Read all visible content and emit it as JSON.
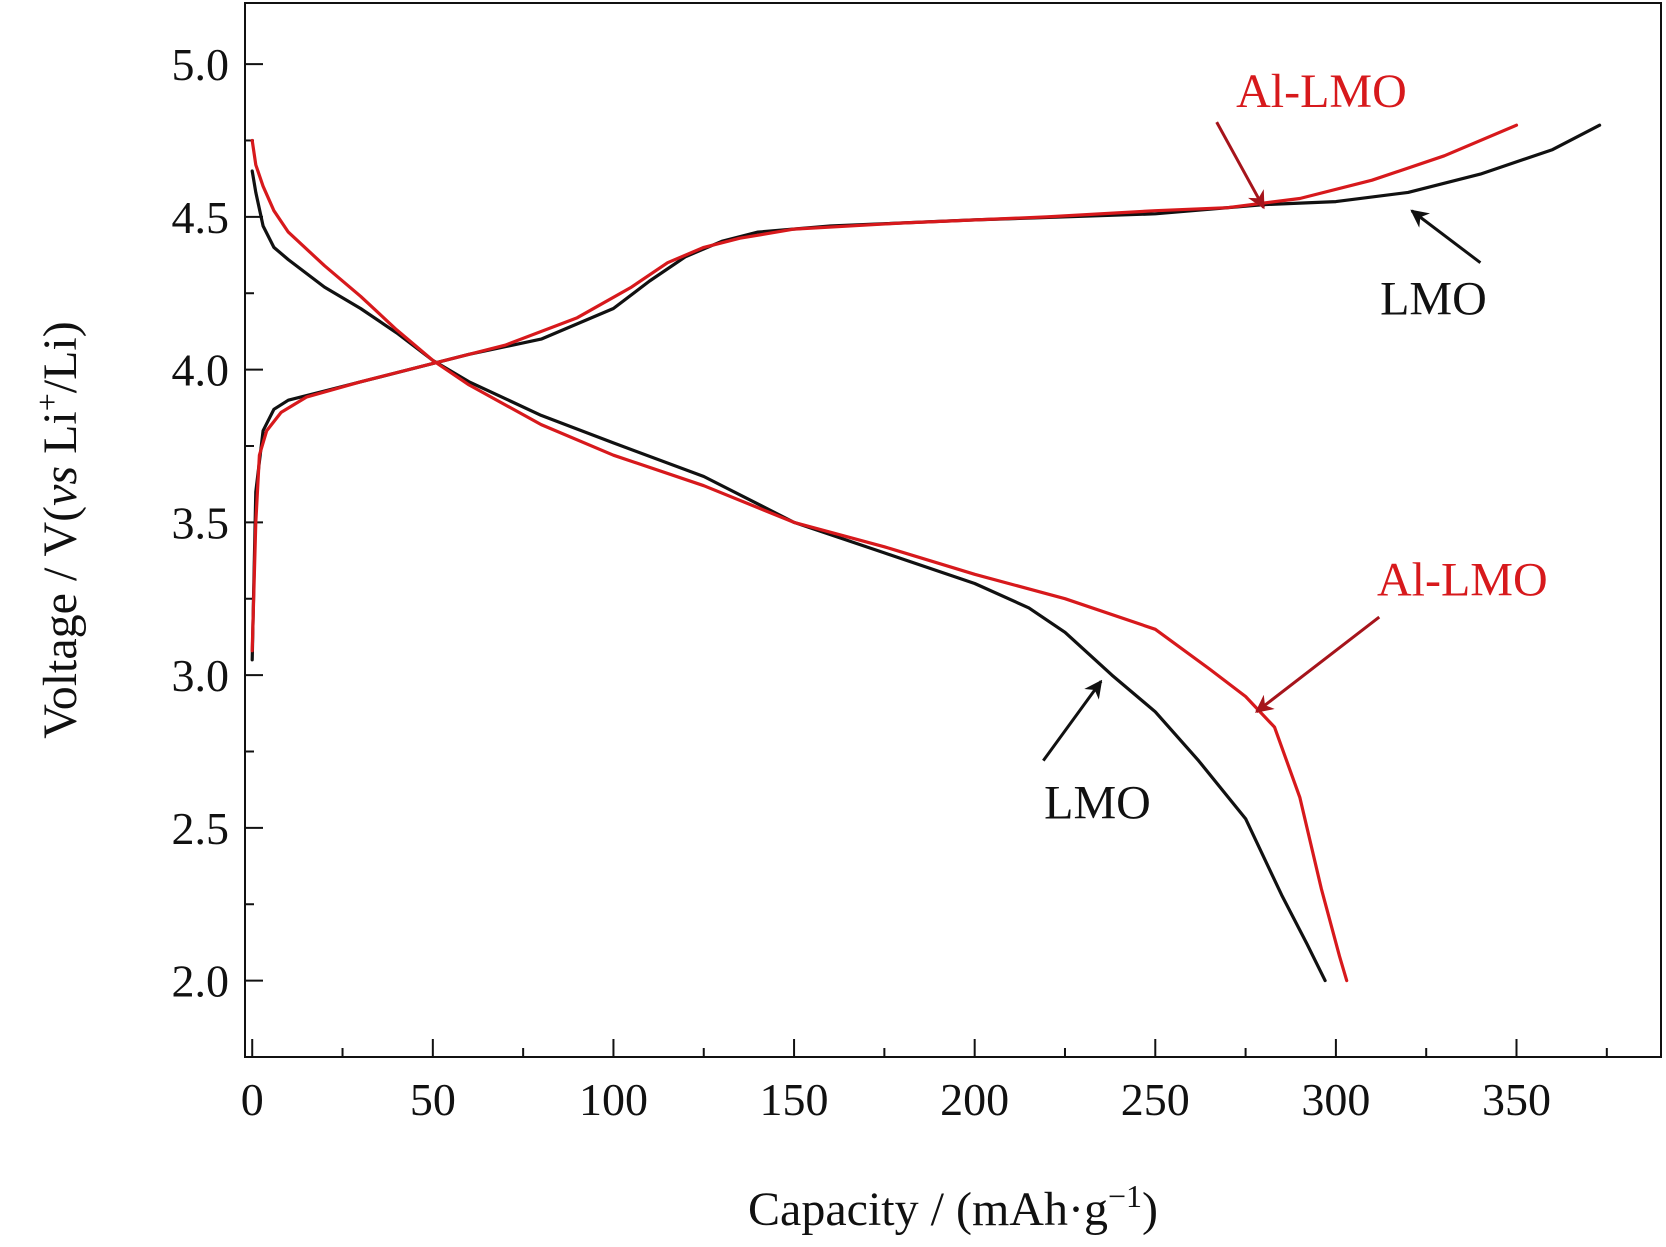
{
  "chart_data": {
    "type": "line",
    "xlabel": "Capacity / (mAh·g",
    "xlabel_sup": "−1",
    "xlabel_end": ")",
    "ylabel_prefix": "Voltage / V(",
    "ylabel_vs": "vs",
    "ylabel_li": " Li",
    "ylabel_sup": "+",
    "ylabel_end": "/Li)",
    "xlim": [
      -2,
      390
    ],
    "ylim": [
      1.75,
      5.2
    ],
    "xticks": [
      0,
      50,
      100,
      150,
      200,
      250,
      300,
      350
    ],
    "xtick_labels": [
      "0",
      "50",
      "100",
      "150",
      "200",
      "250",
      "300",
      "350"
    ],
    "yticks": [
      2.0,
      2.5,
      3.0,
      3.5,
      4.0,
      4.5,
      5.0
    ],
    "ytick_labels": [
      "2.0",
      "2.5",
      "3.0",
      "3.5",
      "4.0",
      "4.5",
      "5.0"
    ],
    "colors": {
      "LMO": "#111111",
      "Al-LMO": "#d7191c",
      "Al-LMO-arrow": "#a6141b"
    },
    "series": [
      {
        "name": "LMO",
        "segment": "charge",
        "color": "#111111",
        "points": [
          [
            0,
            3.05
          ],
          [
            1,
            3.6
          ],
          [
            3,
            3.8
          ],
          [
            6,
            3.87
          ],
          [
            10,
            3.9
          ],
          [
            20,
            3.93
          ],
          [
            40,
            3.99
          ],
          [
            60,
            4.05
          ],
          [
            80,
            4.1
          ],
          [
            100,
            4.2
          ],
          [
            110,
            4.29
          ],
          [
            120,
            4.37
          ],
          [
            130,
            4.42
          ],
          [
            140,
            4.45
          ],
          [
            160,
            4.47
          ],
          [
            200,
            4.49
          ],
          [
            250,
            4.51
          ],
          [
            280,
            4.54
          ],
          [
            300,
            4.55
          ],
          [
            320,
            4.58
          ],
          [
            340,
            4.64
          ],
          [
            360,
            4.72
          ],
          [
            373,
            4.8
          ]
        ]
      },
      {
        "name": "LMO",
        "segment": "discharge",
        "color": "#111111",
        "points": [
          [
            0,
            4.65
          ],
          [
            1,
            4.58
          ],
          [
            3,
            4.47
          ],
          [
            6,
            4.4
          ],
          [
            10,
            4.36
          ],
          [
            20,
            4.27
          ],
          [
            30,
            4.2
          ],
          [
            40,
            4.12
          ],
          [
            50,
            4.03
          ],
          [
            60,
            3.96
          ],
          [
            80,
            3.85
          ],
          [
            100,
            3.76
          ],
          [
            125,
            3.65
          ],
          [
            150,
            3.5
          ],
          [
            175,
            3.4
          ],
          [
            200,
            3.3
          ],
          [
            215,
            3.22
          ],
          [
            225,
            3.14
          ],
          [
            238,
            3.0
          ],
          [
            250,
            2.88
          ],
          [
            262,
            2.72
          ],
          [
            275,
            2.53
          ],
          [
            285,
            2.28
          ],
          [
            292,
            2.12
          ],
          [
            297,
            2.0
          ]
        ]
      },
      {
        "name": "Al-LMO",
        "segment": "charge",
        "color": "#d7191c",
        "points": [
          [
            0,
            3.08
          ],
          [
            1,
            3.5
          ],
          [
            2,
            3.72
          ],
          [
            4,
            3.8
          ],
          [
            8,
            3.86
          ],
          [
            15,
            3.91
          ],
          [
            30,
            3.96
          ],
          [
            50,
            4.02
          ],
          [
            70,
            4.08
          ],
          [
            90,
            4.17
          ],
          [
            105,
            4.27
          ],
          [
            115,
            4.35
          ],
          [
            125,
            4.4
          ],
          [
            135,
            4.43
          ],
          [
            150,
            4.46
          ],
          [
            180,
            4.48
          ],
          [
            220,
            4.5
          ],
          [
            250,
            4.52
          ],
          [
            270,
            4.53
          ],
          [
            290,
            4.56
          ],
          [
            310,
            4.62
          ],
          [
            330,
            4.7
          ],
          [
            350,
            4.8
          ]
        ]
      },
      {
        "name": "Al-LMO",
        "segment": "discharge",
        "color": "#d7191c",
        "points": [
          [
            0,
            4.75
          ],
          [
            1,
            4.67
          ],
          [
            3,
            4.6
          ],
          [
            6,
            4.52
          ],
          [
            10,
            4.45
          ],
          [
            20,
            4.34
          ],
          [
            30,
            4.24
          ],
          [
            40,
            4.13
          ],
          [
            50,
            4.03
          ],
          [
            60,
            3.95
          ],
          [
            80,
            3.82
          ],
          [
            100,
            3.72
          ],
          [
            125,
            3.62
          ],
          [
            150,
            3.5
          ],
          [
            175,
            3.42
          ],
          [
            200,
            3.33
          ],
          [
            225,
            3.25
          ],
          [
            250,
            3.15
          ],
          [
            265,
            3.02
          ],
          [
            275,
            2.93
          ],
          [
            283,
            2.83
          ],
          [
            290,
            2.6
          ],
          [
            296,
            2.3
          ],
          [
            301,
            2.08
          ],
          [
            303,
            2.0
          ]
        ]
      }
    ],
    "annotations": [
      {
        "text": "Al-LMO",
        "color": "#d7191c",
        "label_at": [
          296,
          4.86
        ],
        "arrow_from": [
          267,
          4.81
        ],
        "arrow_to": [
          280,
          4.53
        ]
      },
      {
        "text": "LMO",
        "color": "#111111",
        "label_at": [
          327,
          4.18
        ],
        "arrow_from": [
          340,
          4.35
        ],
        "arrow_to": [
          321,
          4.52
        ]
      },
      {
        "text": "Al-LMO",
        "color": "#d7191c",
        "label_at": [
          335,
          3.26
        ],
        "arrow_from": [
          312,
          3.19
        ],
        "arrow_to": [
          278,
          2.88
        ]
      },
      {
        "text": "LMO",
        "color": "#111111",
        "label_at": [
          234,
          2.53
        ],
        "arrow_from": [
          219,
          2.72
        ],
        "arrow_to": [
          235,
          2.98
        ]
      }
    ]
  }
}
